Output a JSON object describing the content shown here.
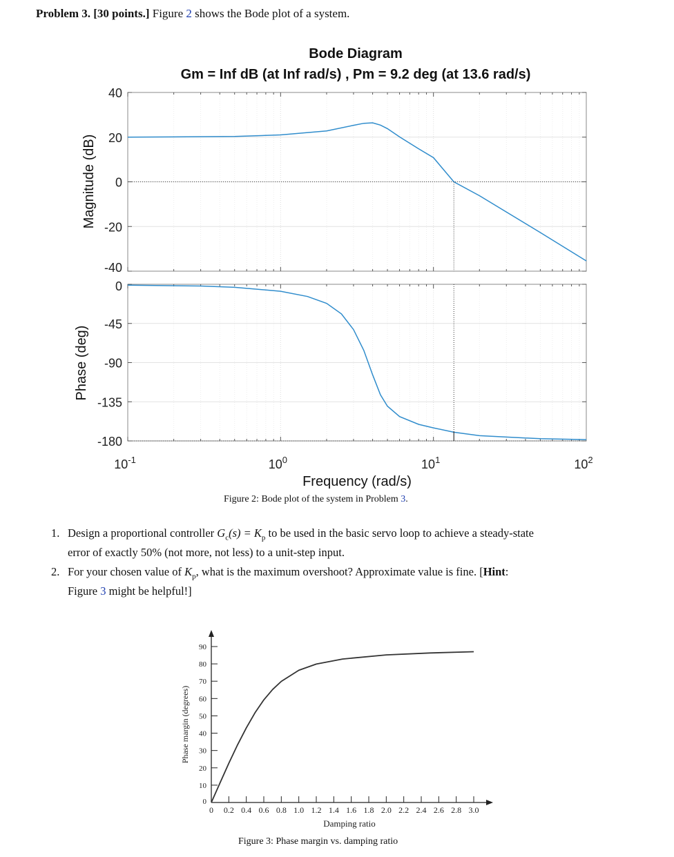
{
  "header": {
    "problem_label": "Problem 3.",
    "points": "[30 points.]",
    "intro_before": "Figure",
    "intro_ref": "2",
    "intro_after": "shows the Bode plot of a system."
  },
  "figure2": {
    "caption_prefix": "Figure 2: Bode plot of the system in Problem",
    "caption_ref": "3",
    "caption_suffix": "."
  },
  "questions": [
    {
      "number": "1.",
      "text": "Design a proportional controller G_c(s) = K_p to be used in the basic servo loop to achieve a steady-state error of exactly 50% (not more, not less) to a unit-step input."
    },
    {
      "number": "2.",
      "text": "For your chosen value of K_p, what is the maximum overshoot? Approximate value is fine. [Hint: Figure 3 might be helpful!]"
    }
  ],
  "q1": {
    "number": "1.",
    "before": "Design a proportional controller",
    "math": "G",
    "math_sub": "c",
    "math2": "(s) = K",
    "math2_sub": "p",
    "after_line1": "to be used in the basic servo loop to achieve a steady-state",
    "line2": "error of exactly 50% (not more, not less) to a unit-step input."
  },
  "q2": {
    "number": "2.",
    "before": "For your chosen value of",
    "math": "K",
    "math_sub": "p",
    "after_line1": ", what is the maximum overshoot? Approximate value is fine. [",
    "hint": "Hint",
    "after_hint": ":",
    "line2_before": "Figure",
    "line2_ref": "3",
    "line2_after": "might be helpful!]"
  },
  "figure3": {
    "caption": "Figure 3: Phase margin vs. damping ratio"
  },
  "chart_data": [
    {
      "type": "line",
      "title": "Bode Diagram",
      "subtitle": "Gm = Inf dB (at Inf rad/s) ,  Pm = 9.2 deg (at 13.6 rad/s)",
      "xlabel": "Frequency  (rad/s)",
      "xscale": "log",
      "xlim": [
        0.1,
        100
      ],
      "x_tick_labels": [
        {
          "base": "10",
          "exp": "-1"
        },
        {
          "base": "10",
          "exp": "0"
        },
        {
          "base": "10",
          "exp": "1"
        },
        {
          "base": "10",
          "exp": "2"
        }
      ],
      "color": "#2f8ccc",
      "grid": true,
      "panels": [
        {
          "ylabel": "Magnitude (dB)",
          "ylim": [
            -40,
            40
          ],
          "y_ticks": [
            "40",
            "20",
            "0",
            "-20",
            "-40"
          ],
          "x": [
            0.1,
            0.5,
            1,
            2,
            3,
            3.5,
            4,
            4.5,
            5,
            6,
            8,
            10,
            13.6,
            20,
            50,
            100
          ],
          "y": [
            20,
            20.3,
            21,
            22.8,
            25.3,
            26.2,
            26.4,
            25.4,
            23.8,
            20.1,
            14.8,
            10.8,
            0,
            -6.2,
            -22.7,
            -35.4
          ]
        },
        {
          "ylabel": "Phase (deg)",
          "ylim": [
            -180,
            0
          ],
          "y_ticks": [
            "0",
            "-45",
            "-90",
            "-135",
            "-180"
          ],
          "x": [
            0.1,
            0.3,
            0.5,
            1,
            1.5,
            2,
            2.5,
            3,
            3.5,
            4,
            4.5,
            5,
            6,
            8,
            10,
            13.6,
            20,
            50,
            100
          ],
          "y": [
            -1,
            -2,
            -3.5,
            -8,
            -14,
            -22,
            -34,
            -52,
            -76,
            -104,
            -127,
            -140,
            -152,
            -161,
            -165,
            -170,
            -174,
            -177.5,
            -178.5
          ]
        }
      ],
      "annotations": [
        {
          "at_x": 13.6,
          "magnitude_db": 0,
          "phase_deg": -170.8
        }
      ]
    },
    {
      "type": "line",
      "xlabel": "Damping ratio",
      "ylabel": "Phase margin (degrees)",
      "xlim": [
        0,
        3.0
      ],
      "ylim": [
        0,
        90
      ],
      "x_ticks": [
        "0",
        "0.2",
        "0.4",
        "0.6",
        "0.8",
        "1.0",
        "1.2",
        "1.4",
        "1.6",
        "1.8",
        "2.0",
        "2.2",
        "2.4",
        "2.6",
        "2.8",
        "3.0"
      ],
      "y_ticks": [
        "0",
        "10",
        "20",
        "30",
        "40",
        "50",
        "60",
        "70",
        "80",
        "90"
      ],
      "color": "#333333",
      "x": [
        0,
        0.1,
        0.2,
        0.3,
        0.4,
        0.5,
        0.6,
        0.7,
        0.8,
        1.0,
        1.2,
        1.5,
        2.0,
        2.5,
        3.0
      ],
      "y": [
        0,
        11.4,
        22.6,
        33.3,
        43.1,
        51.8,
        59.2,
        65.2,
        69.9,
        76.3,
        79.9,
        82.8,
        85.2,
        86.3,
        87.0
      ]
    }
  ]
}
